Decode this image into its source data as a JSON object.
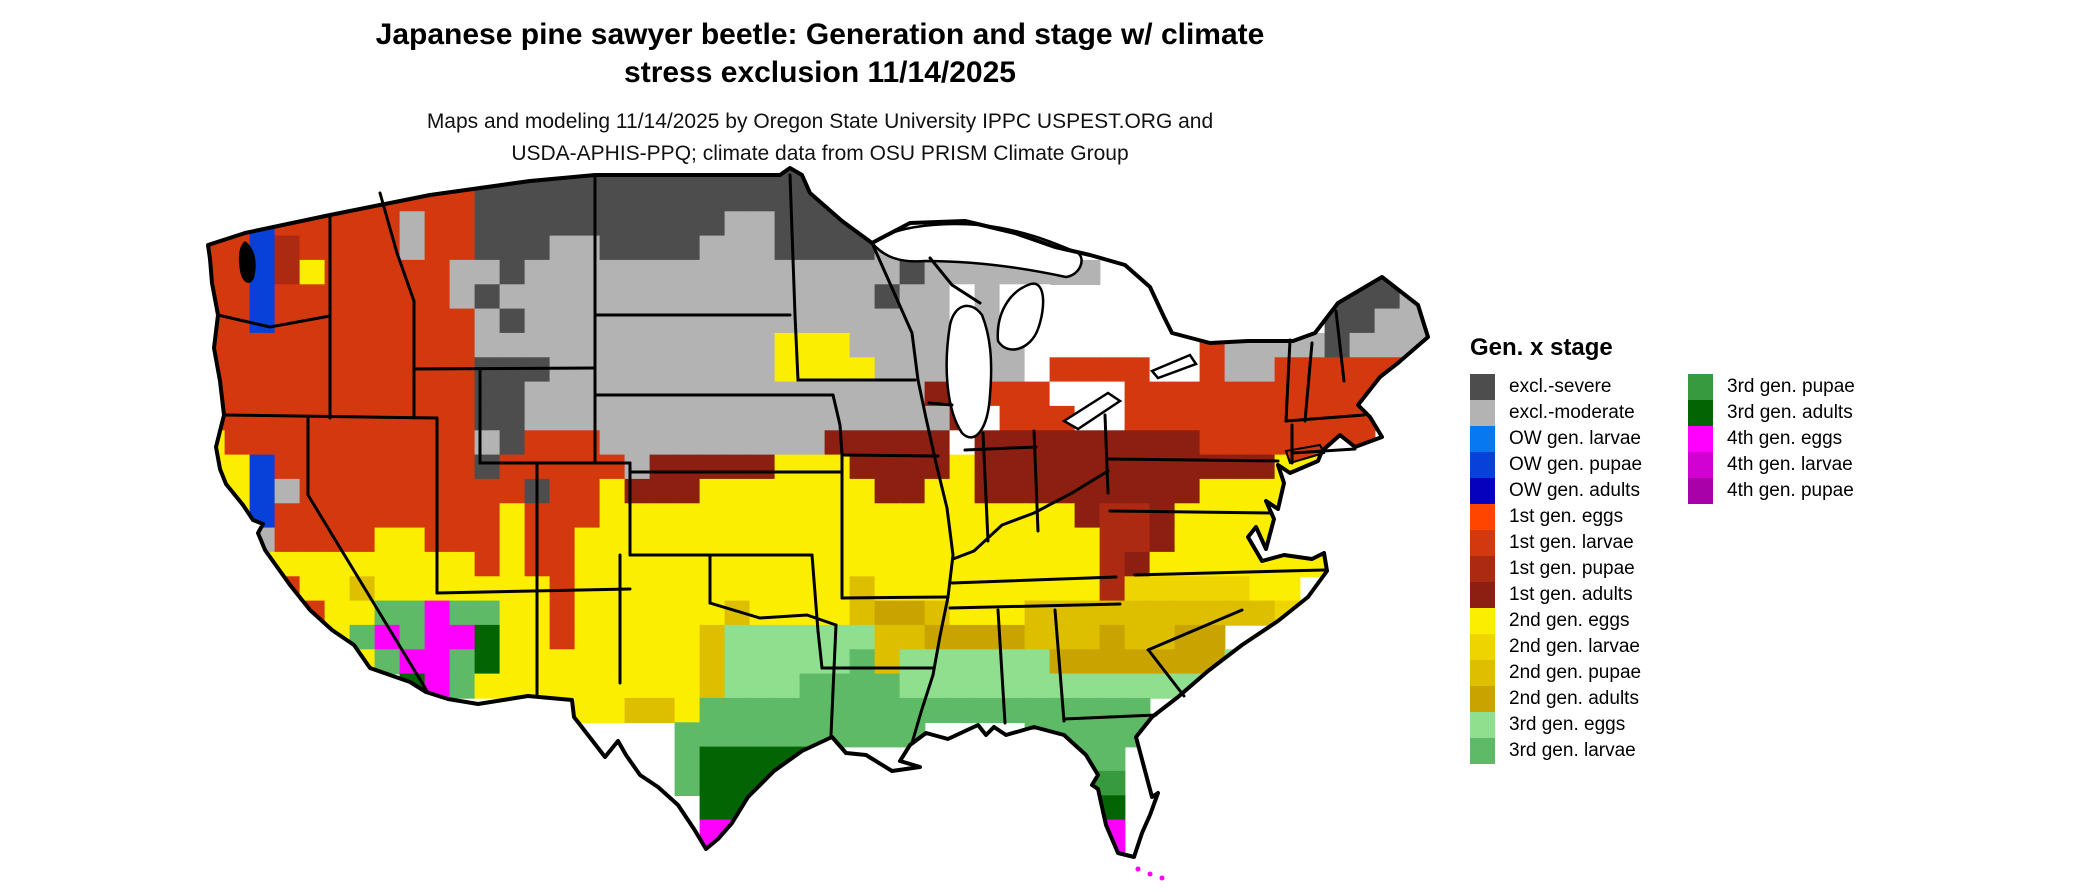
{
  "figure": {
    "title_line1": "Japanese pine sawyer beetle: Generation and stage w/ climate",
    "title_line2": "stress exclusion 11/14/2025",
    "subtitle_line1": "Maps and modeling 11/14/2025 by Oregon State University IPPC USPEST.ORG and",
    "subtitle_line2": "USDA-APHIS-PPQ; climate data from OSU PRISM Climate Group"
  },
  "legend": {
    "title": "Gen. x stage",
    "columns": [
      [
        {
          "label": "excl.-severe",
          "color": "#4d4d4d"
        },
        {
          "label": "excl.-moderate",
          "color": "#b3b3b3"
        },
        {
          "label": "OW gen. larvae",
          "color": "#0878f0"
        },
        {
          "label": "OW gen. pupae",
          "color": "#0841da"
        },
        {
          "label": "OW gen. adults",
          "color": "#0501bd"
        },
        {
          "label": "1st gen. eggs",
          "color": "#ff4500"
        },
        {
          "label": "1st gen. larvae",
          "color": "#d4380f"
        },
        {
          "label": "1st gen. pupae",
          "color": "#ac2a12"
        },
        {
          "label": "1st gen. adults",
          "color": "#8c1f12"
        },
        {
          "label": "2nd gen. eggs",
          "color": "#fcee00"
        },
        {
          "label": "2nd gen. larvae",
          "color": "#eed400"
        },
        {
          "label": "2nd gen. pupae",
          "color": "#ddbf00"
        },
        {
          "label": "2nd gen. adults",
          "color": "#c9a400"
        },
        {
          "label": "3rd gen. eggs",
          "color": "#8fdf8f"
        },
        {
          "label": "3rd gen. larvae",
          "color": "#5eba66"
        }
      ],
      [
        {
          "label": "3rd gen. pupae",
          "color": "#379a3e"
        },
        {
          "label": "3rd gen. adults",
          "color": "#026402"
        },
        {
          "label": "4th gen. eggs",
          "color": "#ff00ff"
        },
        {
          "label": "4th gen. larvae",
          "color": "#d102d1"
        },
        {
          "label": "4th gen. pupae",
          "color": "#a801a8"
        }
      ]
    ]
  },
  "map": {
    "background": "#ffffff",
    "border_color": "#000000",
    "palette": {
      "s": "#4d4d4d",
      "m": "#b3b3b3",
      "L": "#0878f0",
      "P": "#0841da",
      "A": "#0501bd",
      "e": "#ff4500",
      "r": "#d4380f",
      "p": "#ac2a12",
      "a": "#8c1f12",
      "y": "#fcee00",
      "l": "#eed400",
      "u": "#ddbf00",
      "d": "#c9a400",
      "g": "#8fdf8f",
      "G": "#5eba66",
      "U": "#379a3e",
      "D": "#026402",
      "M": "#ff00ff",
      "N": "#d102d1",
      "Q": "#a801a8",
      "w": "#ffffff"
    },
    "grid": {
      "cols": 52,
      "rows": 30,
      "cells": [
        "rrrrrrrrrrrrrsssssssssssssssss......................",
        "rrrrPArrrrrrrsssssssssssssssss......................",
        "rrrrPrrrrrmrrssssssssssmmssssswwwwwww...............",
        "rrrrPprrrrmrrsssmmssssmmmssssmwwwwwwww..............",
        "rrrrPpyrrrrrmmsmmmmmmmmmmmmmmmsmmmmmmm..........ss..",
        "rrrrPrrrrrrrmsmmmmmmmmmmmmmmmsmmwmww...........sssm.",
        "rrrrPrrrrrrrrmsmmmmmmmmmmmmmmmmmwmww...........ssmm.",
        "rrrrrrrrrrrrrmmmmmmmmmmmmyyymmmmwmmw....wwrmmmmsmmmm",
        "rrrrrrrrrrrrrsssmmmmmmmmmyyyymmmwmmwrrrrwwrmmrrrrrrr",
        "rrrrrrrrrrrrrssmmmmmmmmmmmmmmmmawrrrwwwrrrrrrrrrrrrr",
        "rrrrrrrrrrrrrssmmmmmmmmmmmmmmmmmawrrrwwrrrrrrrrrrrrr",
        "ryyrrrrrrrrrrmsrrrmmmmmmmmmaaaaawaaaaaaaaarrrrrrr...",
        "ryyyPrrrrrrrrsrrrrrmaaaaayyyaaaayaaaaaaaaaaaayyy.....",
        "ryuyPmrrrrrrrrrsrryaaayyyyyyyaayyaaaaaaaaayyyy.....",
        "ryuyPrrrrrrrrryrrryyyyyyyyyyyyyyyyyyyappayyyyy.....",
        "ryuymrrrryyrrryrryyyyyyyyyyyyyyyyyyyyyppayyyyyyy....",
        "ryyuyyyyyyyyyryrryyyyyyyyyyyyyyyyyyyyypayyyyyyy.....",
        ".....ryyuyyyyyyyryyyyyyyyyyyuyyyyyyyyyplllllyy......",
        "......ryyGGMGGyyryyyyyyuyyyyudduyyyuuuuuuuuuuly......",
        ".......yGMGMMDyyryyyyyugggggguudddduuuduuddду........",
        "........yGMMGDyyyyyyyyugggggGuggggggdddddddg.........",
        "..........DMGyyyyyyyyyugggGGGGggggggggggggg.........",
        ".................yyuuyGGGGGGGGGGGGGGGGGG............",
        ".....................GGGGGGGGGG....GGGGG............",
        ".....................GDDDDD.........GGG.............",
        ".....................GDDD...........UUU.............",
        "......................DD............DDD.............",
        "......................MM.............DM.............",
        "......................M..............MM.............",
        ".....................................M.............."
      ]
    }
  }
}
